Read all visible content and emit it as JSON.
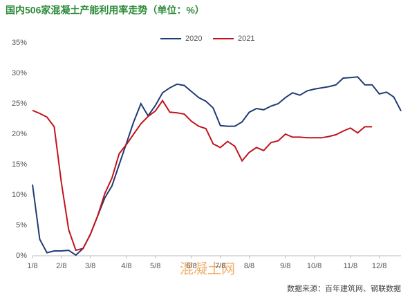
{
  "chart_data": {
    "type": "line",
    "title": "国内506家混凝土产能利用率走势（单位：%）",
    "source": "数据来源：百年建筑网、钢联数据",
    "watermark": "混凝土网",
    "categories": [
      "1/8",
      null,
      null,
      null,
      "2/8",
      null,
      null,
      null,
      "3/8",
      null,
      null,
      null,
      null,
      "4/8",
      null,
      null,
      null,
      "5/8",
      null,
      null,
      null,
      null,
      "6/8",
      null,
      null,
      null,
      "7/8",
      null,
      null,
      null,
      "8/8",
      null,
      null,
      null,
      null,
      "9/8",
      null,
      null,
      null,
      "10/8",
      null,
      null,
      null,
      null,
      "11/8",
      null,
      null,
      null,
      "12/8",
      null,
      null,
      null
    ],
    "series": [
      {
        "name": "2020",
        "color": "#1f3b73",
        "values": [
          11.7,
          2.7,
          0.5,
          0.8,
          0.8,
          0.9,
          0.1,
          1.2,
          3.5,
          6.5,
          9.5,
          11.5,
          15,
          18.5,
          22,
          25,
          23,
          24.7,
          26.8,
          27.6,
          28.2,
          28.0,
          27.0,
          26.0,
          25.4,
          24.3,
          21.4,
          21.3,
          21.3,
          22.0,
          23.6,
          24.2,
          24.0,
          24.6,
          25.0,
          26.0,
          26.8,
          26.4,
          27.1,
          27.4,
          27.6,
          27.8,
          28.1,
          29.2,
          29.3,
          29.4,
          28.1,
          28.1,
          26.6,
          26.9,
          26.1,
          23.8
        ]
      },
      {
        "name": "2021",
        "color": "#c0141c",
        "values": [
          23.9,
          23.4,
          22.8,
          21.2,
          12,
          4.3,
          0.9,
          1.2,
          3.5,
          6.5,
          10.2,
          12.8,
          16.8,
          18.3,
          20,
          21.7,
          22.9,
          23.8,
          25.5,
          23.6,
          23.5,
          23.3,
          22.1,
          21.3,
          20.9,
          18.4,
          17.8,
          18.8,
          18.0,
          15.6,
          17.0,
          17.8,
          17.3,
          18.6,
          18.9,
          20.0,
          19.5,
          19.5,
          19.4,
          19.4,
          19.4,
          19.6,
          19.9,
          20.5,
          21.0,
          20.2,
          21.2,
          21.2,
          null,
          null,
          null,
          null
        ]
      }
    ],
    "ylim": [
      0,
      35
    ],
    "yticks": [
      {
        "value": 0,
        "label": "0%"
      },
      {
        "value": 5,
        "label": "5%"
      },
      {
        "value": 10,
        "label": "10%"
      },
      {
        "value": 15,
        "label": "15%"
      },
      {
        "value": 20,
        "label": "20%"
      },
      {
        "value": 25,
        "label": "25%"
      },
      {
        "value": 30,
        "label": "30%"
      },
      {
        "value": 35,
        "label": "35%"
      }
    ],
    "grid": false,
    "legend": "top"
  }
}
